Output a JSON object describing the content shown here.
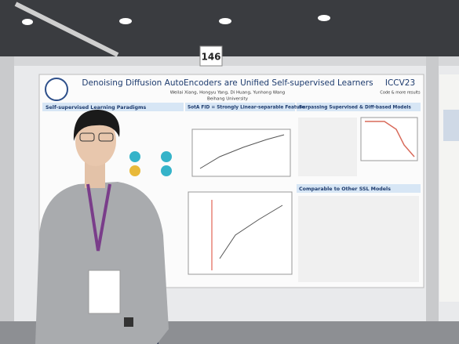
{
  "board_number": "146",
  "poster": {
    "title": "Denoising Diffusion AutoEncoders are Unified Self-supervised Learners",
    "venue": "ICCV23",
    "authors": "Weilai Xiang, Hongyu Yang, Di Huang, Yunhong Wang",
    "affiliation": "Beihang University",
    "code": "Code & more results",
    "sections": [
      "Self-supervised Learning Paradigms",
      "SotA FID = Strongly Linear-separable Feature",
      "Surpassing Supervised & Diff-based Models",
      "Comparable to Other SSL Models"
    ]
  }
}
